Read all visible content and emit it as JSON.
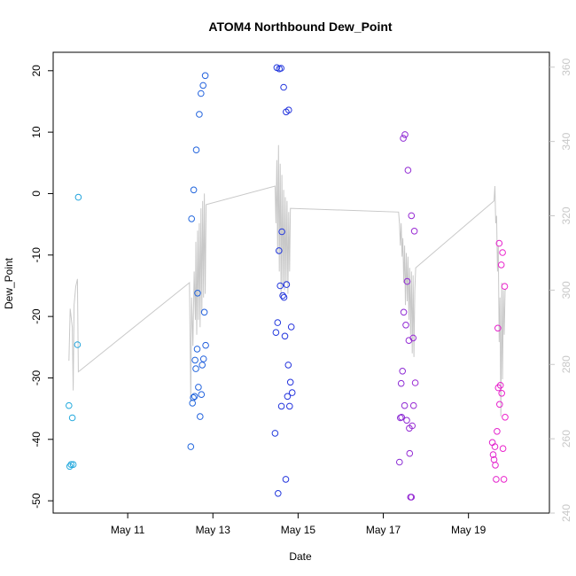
{
  "chart_data": {
    "type": "scatter",
    "title": "ATOM4 Northbound Dew_Point",
    "xlabel": "Date",
    "ylabel": "Dew_Point",
    "x_ticks": [
      {
        "label": "May 11",
        "day": 11
      },
      {
        "label": "May 13",
        "day": 13
      },
      {
        "label": "May 15",
        "day": 15
      },
      {
        "label": "May 17",
        "day": 17
      },
      {
        "label": "May 19",
        "day": 19
      }
    ],
    "xlim_days": [
      9.25,
      20.9
    ],
    "ylim": [
      -52,
      23
    ],
    "y_ticks": [
      -50,
      -40,
      -30,
      -20,
      -10,
      0,
      10,
      20
    ],
    "y_right_lim": [
      240,
      364
    ],
    "y_right_ticks": [
      240,
      260,
      280,
      300,
      320,
      340,
      360
    ],
    "colors": {
      "points_start": "#22aadd",
      "points_mid": "#2233dd",
      "points_end": "#ee22cc",
      "line": "#c8c8c8"
    },
    "points": [
      {
        "x": 9.62,
        "y": -34.5
      },
      {
        "x": 9.64,
        "y": -44.4
      },
      {
        "x": 9.67,
        "y": -44.1
      },
      {
        "x": 9.7,
        "y": -36.5
      },
      {
        "x": 9.72,
        "y": -44.1
      },
      {
        "x": 9.82,
        "y": -24.6
      },
      {
        "x": 9.84,
        "y": -0.6
      },
      {
        "x": 12.48,
        "y": -41.2
      },
      {
        "x": 12.5,
        "y": -4.1
      },
      {
        "x": 12.52,
        "y": -34.1
      },
      {
        "x": 12.54,
        "y": -33.2
      },
      {
        "x": 12.55,
        "y": 0.6
      },
      {
        "x": 12.57,
        "y": -33.0
      },
      {
        "x": 12.58,
        "y": -27.1
      },
      {
        "x": 12.6,
        "y": -28.5
      },
      {
        "x": 12.61,
        "y": 7.1
      },
      {
        "x": 12.63,
        "y": -25.3
      },
      {
        "x": 12.64,
        "y": -16.2
      },
      {
        "x": 12.66,
        "y": -31.5
      },
      {
        "x": 12.68,
        "y": 12.9
      },
      {
        "x": 12.7,
        "y": -36.3
      },
      {
        "x": 12.72,
        "y": 16.3
      },
      {
        "x": 12.73,
        "y": -32.7
      },
      {
        "x": 12.75,
        "y": -27.9
      },
      {
        "x": 12.77,
        "y": 17.6
      },
      {
        "x": 12.78,
        "y": -26.9
      },
      {
        "x": 12.8,
        "y": -19.3
      },
      {
        "x": 12.82,
        "y": 19.2
      },
      {
        "x": 12.83,
        "y": -24.7
      },
      {
        "x": 14.46,
        "y": -39.0
      },
      {
        "x": 14.48,
        "y": -22.6
      },
      {
        "x": 14.5,
        "y": 20.5
      },
      {
        "x": 14.52,
        "y": -21.0
      },
      {
        "x": 14.53,
        "y": -48.8
      },
      {
        "x": 14.55,
        "y": -9.3
      },
      {
        "x": 14.56,
        "y": 20.3
      },
      {
        "x": 14.58,
        "y": -15.0
      },
      {
        "x": 14.6,
        "y": 20.4
      },
      {
        "x": 14.61,
        "y": -34.6
      },
      {
        "x": 14.62,
        "y": -6.2
      },
      {
        "x": 14.64,
        "y": -16.6
      },
      {
        "x": 14.66,
        "y": 17.3
      },
      {
        "x": 14.67,
        "y": -16.9
      },
      {
        "x": 14.69,
        "y": -23.2
      },
      {
        "x": 14.71,
        "y": -46.5
      },
      {
        "x": 14.72,
        "y": 13.3
      },
      {
        "x": 14.73,
        "y": -14.8
      },
      {
        "x": 14.75,
        "y": -33.0
      },
      {
        "x": 14.77,
        "y": -27.9
      },
      {
        "x": 14.78,
        "y": 13.6
      },
      {
        "x": 14.8,
        "y": -34.6
      },
      {
        "x": 14.82,
        "y": -30.7
      },
      {
        "x": 14.84,
        "y": -21.7
      },
      {
        "x": 14.86,
        "y": -32.4
      },
      {
        "x": 17.38,
        "y": -43.7
      },
      {
        "x": 17.4,
        "y": -36.5
      },
      {
        "x": 17.42,
        "y": -30.9
      },
      {
        "x": 17.43,
        "y": -36.4
      },
      {
        "x": 17.45,
        "y": -28.9
      },
      {
        "x": 17.47,
        "y": 9.0
      },
      {
        "x": 17.48,
        "y": -19.3
      },
      {
        "x": 17.5,
        "y": -34.5
      },
      {
        "x": 17.51,
        "y": 9.6
      },
      {
        "x": 17.53,
        "y": -21.4
      },
      {
        "x": 17.55,
        "y": -36.9
      },
      {
        "x": 17.56,
        "y": -14.3
      },
      {
        "x": 17.58,
        "y": 3.8
      },
      {
        "x": 17.6,
        "y": -23.9
      },
      {
        "x": 17.61,
        "y": -38.2
      },
      {
        "x": 17.62,
        "y": -42.3
      },
      {
        "x": 17.64,
        "y": -49.4
      },
      {
        "x": 17.66,
        "y": -3.6
      },
      {
        "x": 17.68,
        "y": -37.8
      },
      {
        "x": 17.7,
        "y": -23.5
      },
      {
        "x": 17.71,
        "y": -34.5
      },
      {
        "x": 17.73,
        "y": -6.1
      },
      {
        "x": 17.75,
        "y": -30.8
      },
      {
        "x": 17.66,
        "y": -49.4
      },
      {
        "x": 19.56,
        "y": -40.5
      },
      {
        "x": 19.58,
        "y": -42.5
      },
      {
        "x": 19.6,
        "y": -43.3
      },
      {
        "x": 19.62,
        "y": -41.2
      },
      {
        "x": 19.63,
        "y": -44.2
      },
      {
        "x": 19.65,
        "y": -46.5
      },
      {
        "x": 19.67,
        "y": -38.7
      },
      {
        "x": 19.69,
        "y": -21.9
      },
      {
        "x": 19.7,
        "y": -31.6
      },
      {
        "x": 19.72,
        "y": -8.1
      },
      {
        "x": 19.73,
        "y": -34.3
      },
      {
        "x": 19.75,
        "y": -31.2
      },
      {
        "x": 19.77,
        "y": -11.6
      },
      {
        "x": 19.78,
        "y": -32.5
      },
      {
        "x": 19.8,
        "y": -9.6
      },
      {
        "x": 19.81,
        "y": -41.5
      },
      {
        "x": 19.83,
        "y": -46.5
      },
      {
        "x": 19.85,
        "y": -15.1
      },
      {
        "x": 19.86,
        "y": -36.4
      }
    ],
    "line": [
      [
        9.62,
        281
      ],
      [
        9.65,
        295
      ],
      [
        9.7,
        290
      ],
      [
        9.72,
        273
      ],
      [
        9.74,
        296
      ],
      [
        9.78,
        301
      ],
      [
        9.82,
        303
      ],
      [
        9.84,
        278
      ],
      [
        12.45,
        302
      ],
      [
        12.48,
        270
      ],
      [
        12.5,
        298
      ],
      [
        12.53,
        285
      ],
      [
        12.56,
        305
      ],
      [
        12.59,
        292
      ],
      [
        12.6,
        313
      ],
      [
        12.62,
        288
      ],
      [
        12.64,
        316
      ],
      [
        12.66,
        292
      ],
      [
        12.68,
        318
      ],
      [
        12.7,
        290
      ],
      [
        12.72,
        322
      ],
      [
        12.74,
        294
      ],
      [
        12.76,
        324
      ],
      [
        12.78,
        298
      ],
      [
        12.8,
        326
      ],
      [
        12.82,
        299
      ],
      [
        12.84,
        323
      ],
      [
        14.46,
        328
      ],
      [
        14.48,
        318
      ],
      [
        14.5,
        335
      ],
      [
        14.52,
        310
      ],
      [
        14.54,
        339
      ],
      [
        14.56,
        305
      ],
      [
        14.58,
        334
      ],
      [
        14.6,
        298
      ],
      [
        14.62,
        331
      ],
      [
        14.64,
        301
      ],
      [
        14.66,
        327
      ],
      [
        14.68,
        300
      ],
      [
        14.7,
        325
      ],
      [
        14.72,
        302
      ],
      [
        14.74,
        324
      ],
      [
        14.76,
        299
      ],
      [
        14.78,
        321
      ],
      [
        14.8,
        305
      ],
      [
        14.82,
        322
      ],
      [
        17.36,
        321
      ],
      [
        17.38,
        318
      ],
      [
        17.4,
        312
      ],
      [
        17.42,
        318
      ],
      [
        17.44,
        309
      ],
      [
        17.46,
        314
      ],
      [
        17.48,
        302
      ],
      [
        17.5,
        312
      ],
      [
        17.52,
        296
      ],
      [
        17.54,
        310
      ],
      [
        17.56,
        297
      ],
      [
        17.58,
        309
      ],
      [
        17.6,
        292
      ],
      [
        17.62,
        306
      ],
      [
        17.64,
        288
      ],
      [
        17.66,
        305
      ],
      [
        17.68,
        283
      ],
      [
        17.7,
        304
      ],
      [
        17.72,
        282
      ],
      [
        17.74,
        300
      ],
      [
        17.76,
        306
      ],
      [
        19.6,
        324
      ],
      [
        19.62,
        328
      ],
      [
        19.64,
        318
      ],
      [
        19.66,
        320
      ],
      [
        19.68,
        305
      ],
      [
        19.7,
        312
      ],
      [
        19.72,
        286
      ],
      [
        19.74,
        298
      ],
      [
        19.76,
        266
      ],
      [
        19.78,
        302
      ],
      [
        19.8,
        276
      ],
      [
        19.82,
        300
      ],
      [
        19.84,
        288
      ],
      [
        19.86,
        300
      ],
      [
        19.88,
        300
      ]
    ]
  }
}
